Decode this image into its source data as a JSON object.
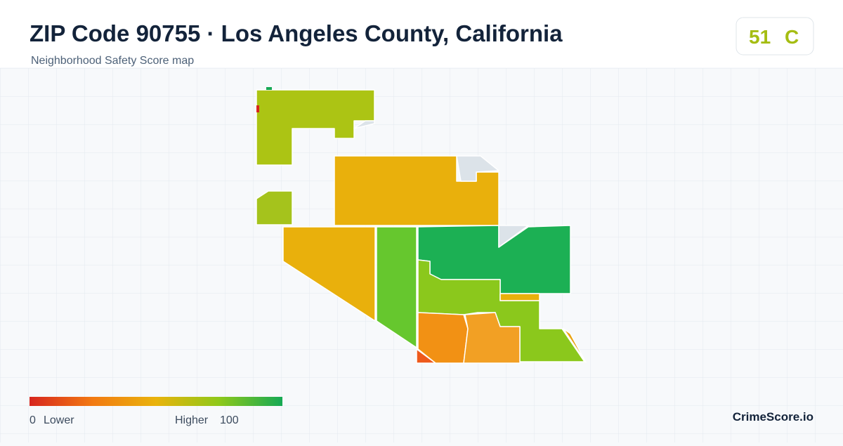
{
  "header": {
    "title": "ZIP Code 90755 · Los Angeles County, California",
    "subtitle": "Neighborhood Safety Score map"
  },
  "score": {
    "value": 51,
    "grade": "C"
  },
  "legend": {
    "min": 0,
    "min_label": "Lower",
    "max_label": "Higher",
    "max": 100
  },
  "brand": "CrimeScore.io"
}
